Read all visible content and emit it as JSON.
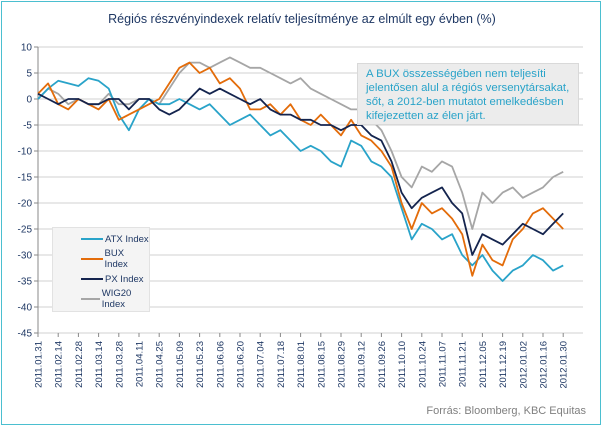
{
  "chart_data": {
    "type": "line",
    "title": "Régiós részvényindexek relatív teljesítménye az elmúlt egy évben (%)",
    "xlabel": "",
    "ylabel": "",
    "ylim": [
      -45,
      10
    ],
    "yticks": [
      10,
      5,
      0,
      -5,
      -10,
      -15,
      -20,
      -25,
      -30,
      -35,
      -40,
      -45
    ],
    "grid": true,
    "legend_position": "bottom-left",
    "x_tick_labels": [
      "2011.01.31",
      "2011.02.14",
      "2011.02.28",
      "2011.03.14",
      "2011.03.28",
      "2011.04.11",
      "2011.04.25",
      "2011.05.09",
      "2011.05.23",
      "2011.06.06",
      "2011.06.20",
      "2011.07.04",
      "2011.07.18",
      "2011.08.01",
      "2011.08.15",
      "2011.08.29",
      "2011.09.12",
      "2011.09.26",
      "2011.10.10",
      "2011.10.24",
      "2011.11.07",
      "2011.11.21",
      "2011.12.05",
      "2011.12.19",
      "2012.01.02",
      "2012.01.16",
      "2012.01.30"
    ],
    "x_sample_note": "values sampled weekly from 2011.01.31 to 2012.01.30 (53 points)",
    "series": [
      {
        "name": "ATX Index",
        "color": "#29a3c9",
        "values": [
          0,
          2,
          3.5,
          3,
          2.5,
          4,
          3.5,
          2,
          -3,
          -6,
          -2,
          0,
          -1,
          -1,
          0,
          -1,
          -2,
          -1,
          -3,
          -5,
          -4,
          -3,
          -5,
          -7,
          -6,
          -8,
          -10,
          -9,
          -10,
          -12,
          -13,
          -8,
          -9,
          -12,
          -13,
          -15,
          -21,
          -27,
          -24,
          -25,
          -27,
          -26,
          -30,
          -32,
          -30,
          -33,
          -35,
          -33,
          -32,
          -30,
          -31,
          -33,
          -32
        ]
      },
      {
        "name": "BUX Index",
        "color": "#e36c0a",
        "values": [
          1,
          3,
          -1,
          -2,
          0,
          -1,
          -2,
          0,
          -4,
          -3,
          -2,
          -1,
          0,
          3,
          6,
          7,
          5,
          6,
          3,
          4,
          2,
          -2,
          -2,
          -1,
          -3,
          -1,
          -4,
          -5,
          -3,
          -5,
          -7,
          -4,
          -7,
          -8,
          -10,
          -13,
          -20,
          -25,
          -20,
          -22,
          -21,
          -23,
          -26,
          -34,
          -28,
          -31,
          -32,
          -27,
          -25,
          -22,
          -21,
          -23,
          -25
        ]
      },
      {
        "name": "PX Index",
        "color": "#14244e",
        "values": [
          1,
          0,
          -1,
          0,
          0,
          -1,
          -1,
          0,
          0,
          -2,
          0,
          0,
          -2,
          -3,
          -2,
          0,
          2,
          1,
          2,
          1,
          0,
          -1,
          0,
          -2,
          -3,
          -3,
          -4,
          -4,
          -5,
          -5,
          -6,
          -5,
          -5,
          -7,
          -8,
          -12,
          -18,
          -21,
          -19,
          -18,
          -17,
          -20,
          -22,
          -30,
          -26,
          -27,
          -28,
          -26,
          -24,
          -25,
          -26,
          -24,
          -22
        ]
      },
      {
        "name": "WIG20 Index",
        "color": "#a6a6a6",
        "values": [
          0,
          2,
          1,
          -1,
          0,
          -1,
          -1,
          1,
          -1,
          -1,
          0,
          0,
          -1,
          2,
          5,
          7,
          7,
          6,
          7,
          8,
          7,
          6,
          6,
          5,
          4,
          3,
          4,
          2,
          1,
          0,
          -1,
          -2,
          -2,
          -4,
          -6,
          -10,
          -15,
          -17,
          -13,
          -14,
          -12,
          -13,
          -18,
          -25,
          -18,
          -20,
          -18,
          -17,
          -19,
          -18,
          -17,
          -15,
          -14
        ]
      }
    ],
    "annotation": "A BUX összességében nem teljesíti jelentősen alul a régiós versenytársakat, sőt, a 2012-ben mutatot emelkedésben kifejezetten az élen járt.",
    "source": "Forrás: Bloomberg, KBC Equitas"
  }
}
